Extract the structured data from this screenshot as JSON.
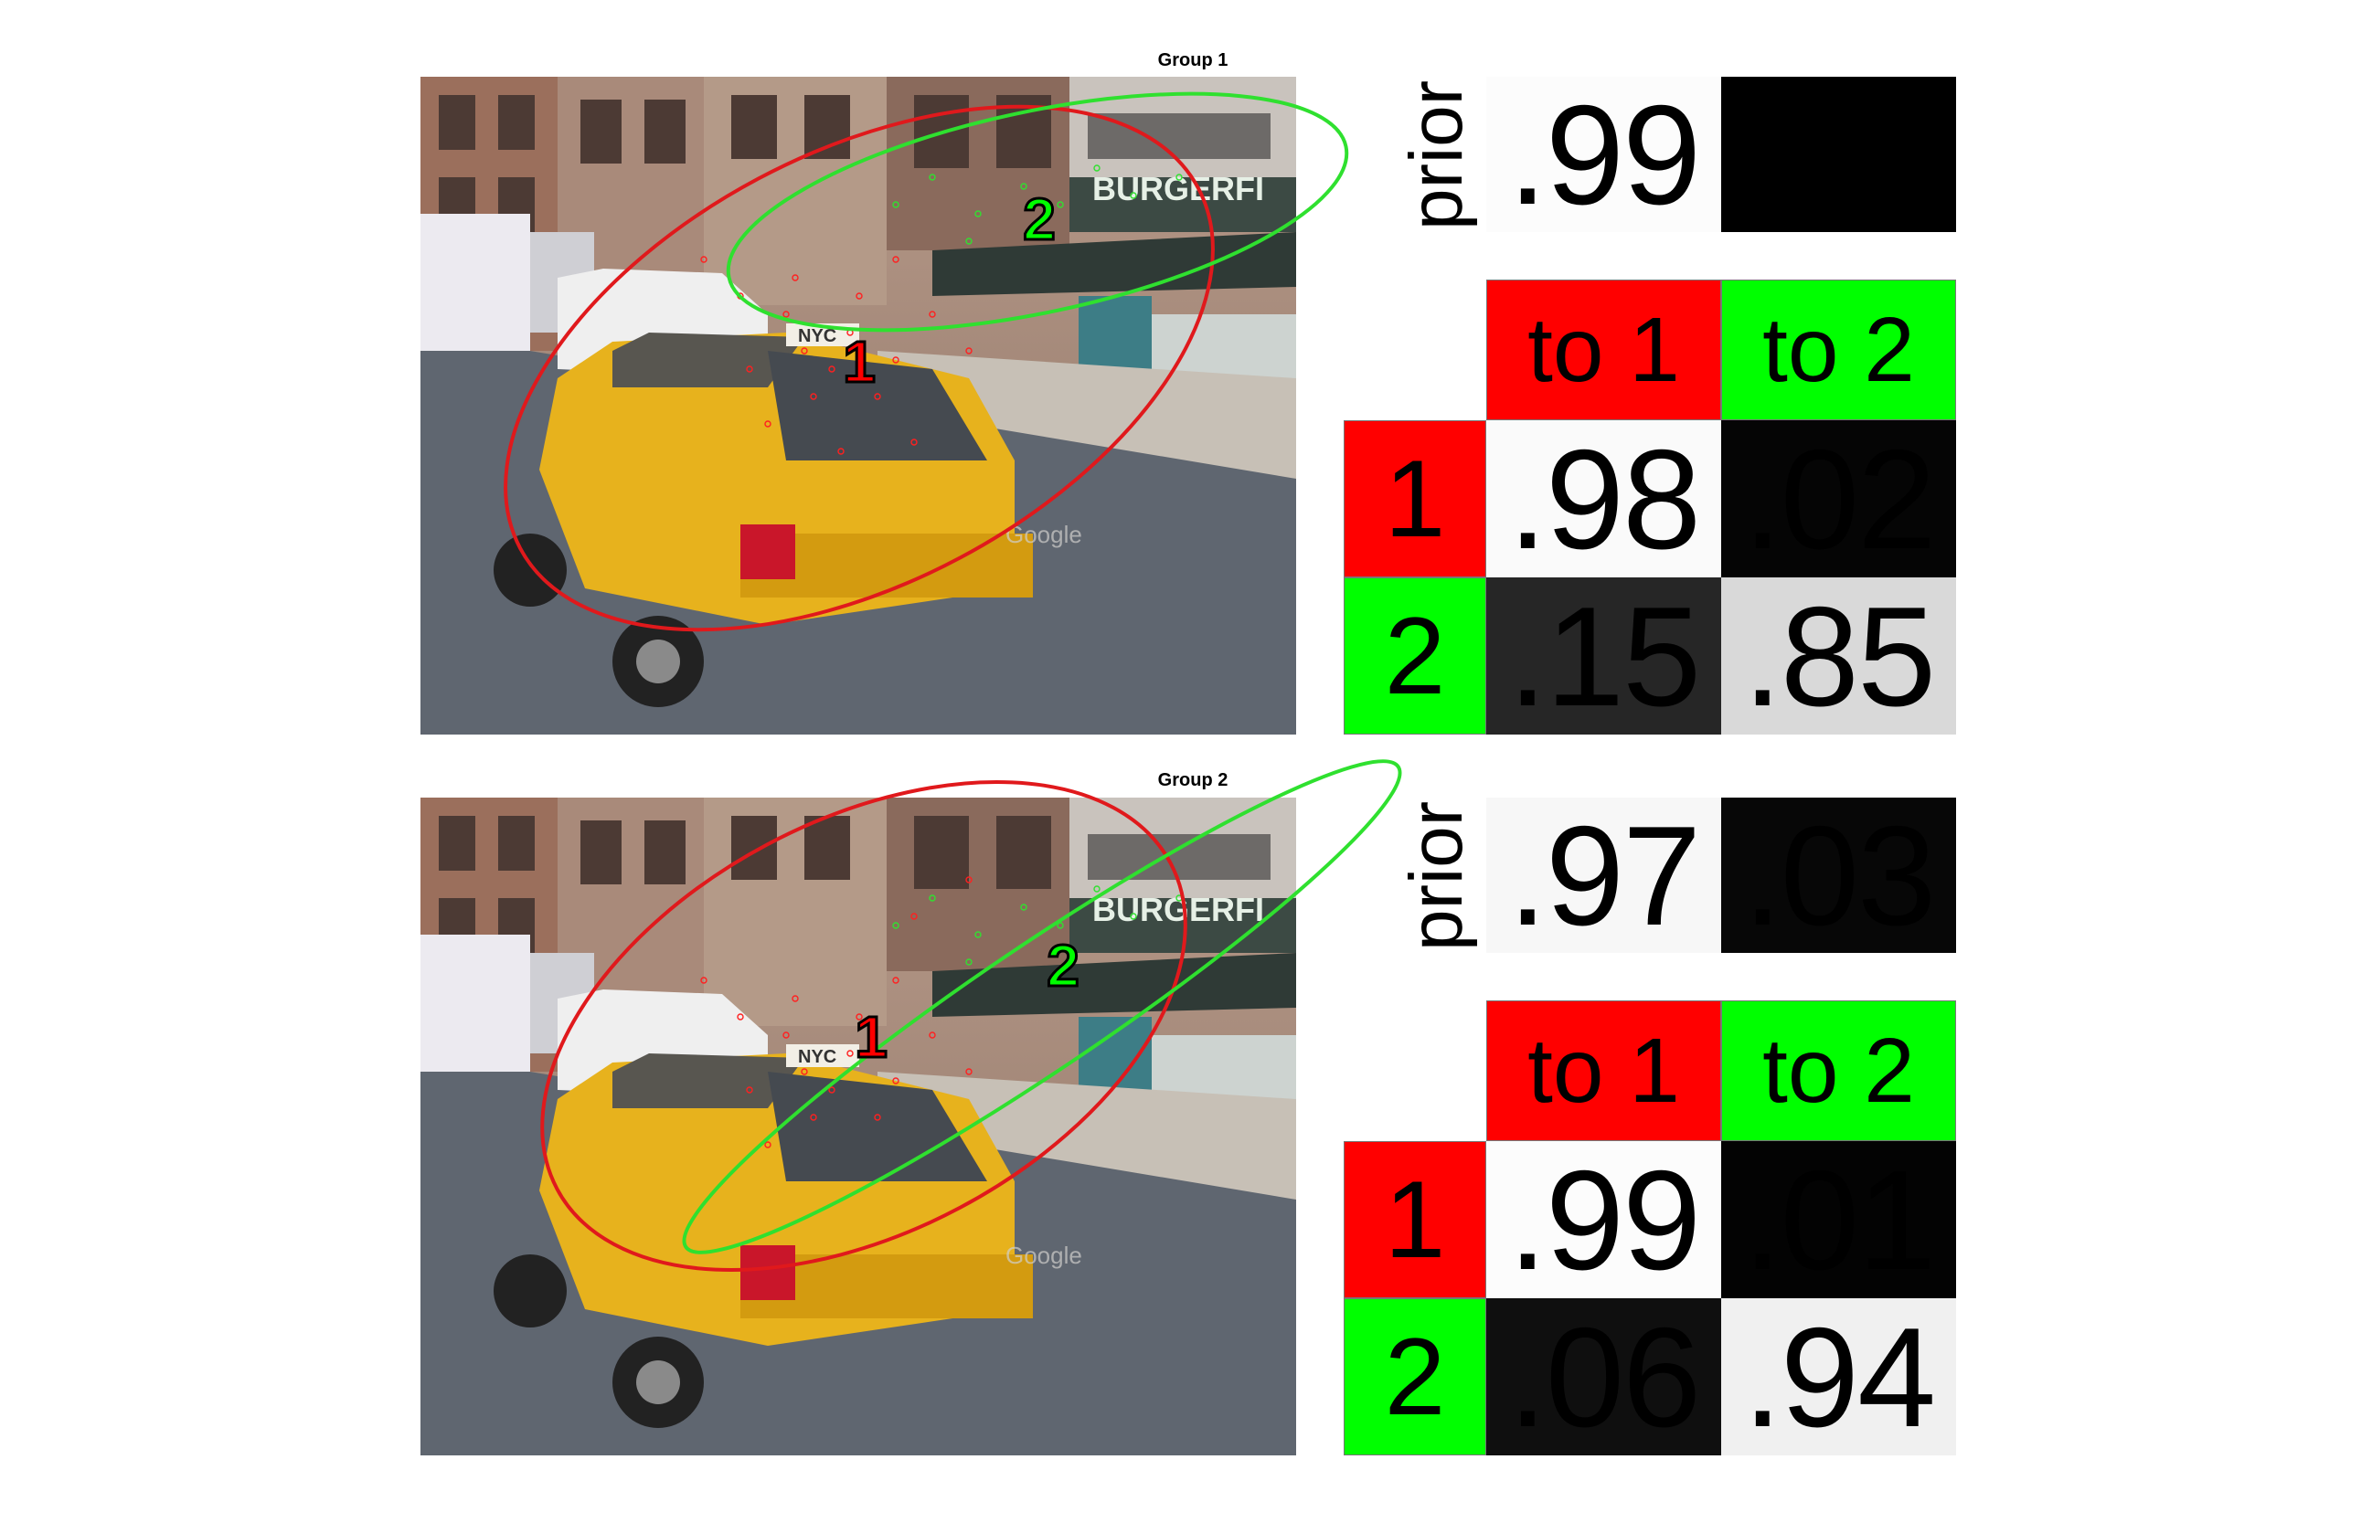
{
  "groups": [
    {
      "label": "Group 1",
      "prior_label": "prior",
      "prior": [
        {
          "text": ".99",
          "value": 0.99
        },
        {
          "text": "",
          "value": 0.01
        }
      ],
      "headers": [
        "to 1",
        "to 2"
      ],
      "rows": [
        {
          "label": "1",
          "cells": [
            {
              "text": ".98",
              "value": 0.98
            },
            {
              "text": ".02",
              "value": 0.02
            }
          ]
        },
        {
          "label": "2",
          "cells": [
            {
              "text": ".15",
              "value": 0.15
            },
            {
              "text": ".85",
              "value": 0.85
            }
          ]
        }
      ],
      "markers": [
        "1",
        "2"
      ]
    },
    {
      "label": "Group 2",
      "prior_label": "prior",
      "prior": [
        {
          "text": ".97",
          "value": 0.97
        },
        {
          "text": ".03",
          "value": 0.03
        }
      ],
      "headers": [
        "to 1",
        "to 2"
      ],
      "rows": [
        {
          "label": "1",
          "cells": [
            {
              "text": ".99",
              "value": 0.99
            },
            {
              "text": ".01",
              "value": 0.01
            }
          ]
        },
        {
          "label": "2",
          "cells": [
            {
              "text": ".06",
              "value": 0.06
            },
            {
              "text": ".94",
              "value": 0.94
            }
          ]
        }
      ],
      "markers": [
        "1",
        "2"
      ]
    }
  ],
  "photo": {
    "sign_text": "BURGERFI",
    "watermark": "Google",
    "taxi_sign": "NYC"
  },
  "colors": {
    "state1": "#ff0000",
    "state2": "#00ff00",
    "ellipse1": "#e0191c",
    "ellipse2": "#2fe02f"
  }
}
